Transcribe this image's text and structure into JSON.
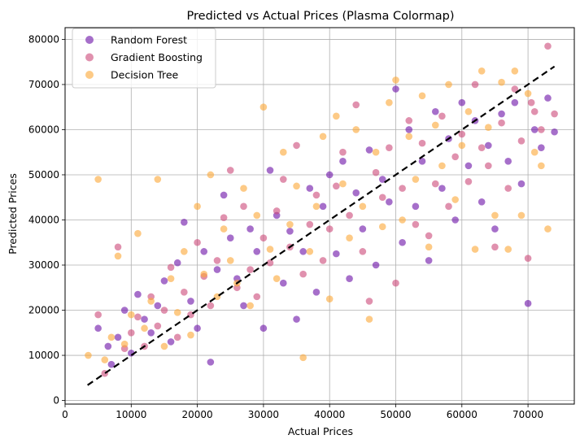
{
  "chart_data": {
    "type": "scatter",
    "title": "Predicted vs Actual Prices (Plasma Colormap)",
    "xlabel": "Actual Prices",
    "ylabel": "Predicted Prices",
    "xlim": [
      0,
      77000
    ],
    "ylim": [
      -800,
      82600
    ],
    "x_ticks": [
      0,
      10000,
      20000,
      30000,
      40000,
      50000,
      60000,
      70000
    ],
    "y_ticks": [
      0,
      10000,
      20000,
      30000,
      40000,
      50000,
      60000,
      70000,
      80000
    ],
    "x_tick_labels": [
      "0",
      "10000",
      "20000",
      "30000",
      "40000",
      "50000",
      "60000",
      "70000"
    ],
    "y_tick_labels": [
      "0",
      "10000",
      "20000",
      "30000",
      "40000",
      "50000",
      "60000",
      "70000",
      "80000"
    ],
    "grid": true,
    "legend_position": "upper-left",
    "point_alpha": 0.6,
    "reference_line": {
      "style": "dashed",
      "color": "#000000",
      "x": [
        3400,
        74000
      ],
      "y": [
        3400,
        74000
      ]
    },
    "series": [
      {
        "name": "Random Forest",
        "color": "#6a0fa7",
        "points": [
          [
            5000,
            16000
          ],
          [
            6500,
            12000
          ],
          [
            7000,
            8000
          ],
          [
            8000,
            14000
          ],
          [
            9000,
            20000
          ],
          [
            10000,
            10500
          ],
          [
            11000,
            23500
          ],
          [
            12000,
            18000
          ],
          [
            13000,
            15000
          ],
          [
            14000,
            21000
          ],
          [
            15000,
            26500
          ],
          [
            16000,
            13000
          ],
          [
            17000,
            30500
          ],
          [
            18000,
            39500
          ],
          [
            19000,
            22000
          ],
          [
            20000,
            16000
          ],
          [
            21000,
            33000
          ],
          [
            22000,
            8500
          ],
          [
            23000,
            29000
          ],
          [
            24000,
            45500
          ],
          [
            25000,
            36000
          ],
          [
            26000,
            27000
          ],
          [
            27000,
            21000
          ],
          [
            28000,
            38000
          ],
          [
            29000,
            33000
          ],
          [
            30000,
            16000
          ],
          [
            31000,
            51000
          ],
          [
            32000,
            41000
          ],
          [
            33000,
            26000
          ],
          [
            34000,
            37500
          ],
          [
            35000,
            18000
          ],
          [
            36000,
            33000
          ],
          [
            37000,
            47000
          ],
          [
            38000,
            24000
          ],
          [
            39000,
            43000
          ],
          [
            40000,
            50000
          ],
          [
            41000,
            32500
          ],
          [
            42000,
            53000
          ],
          [
            43000,
            27000
          ],
          [
            44000,
            46000
          ],
          [
            45000,
            38000
          ],
          [
            46000,
            55500
          ],
          [
            47000,
            30000
          ],
          [
            48000,
            49000
          ],
          [
            49000,
            44000
          ],
          [
            50000,
            69000
          ],
          [
            51000,
            35000
          ],
          [
            52000,
            60000
          ],
          [
            53000,
            43000
          ],
          [
            54000,
            53000
          ],
          [
            55000,
            31000
          ],
          [
            56000,
            64000
          ],
          [
            57000,
            47000
          ],
          [
            58000,
            58000
          ],
          [
            59000,
            40000
          ],
          [
            60000,
            66000
          ],
          [
            61000,
            52000
          ],
          [
            62000,
            62000
          ],
          [
            63000,
            44000
          ],
          [
            64000,
            56500
          ],
          [
            65000,
            38000
          ],
          [
            66000,
            63500
          ],
          [
            67000,
            53000
          ],
          [
            68000,
            66000
          ],
          [
            69000,
            48000
          ],
          [
            70000,
            21500
          ],
          [
            71000,
            60000
          ],
          [
            72000,
            56000
          ],
          [
            73000,
            67000
          ],
          [
            74000,
            59500
          ]
        ]
      },
      {
        "name": "Gradient Boosting",
        "color": "#cc4778",
        "points": [
          [
            5000,
            19000
          ],
          [
            6000,
            6000
          ],
          [
            8000,
            34000
          ],
          [
            9000,
            11500
          ],
          [
            10000,
            15000
          ],
          [
            11000,
            18500
          ],
          [
            12000,
            12000
          ],
          [
            13000,
            23000
          ],
          [
            14000,
            16500
          ],
          [
            15000,
            20000
          ],
          [
            16000,
            29500
          ],
          [
            17000,
            14000
          ],
          [
            18000,
            24000
          ],
          [
            19000,
            19000
          ],
          [
            20000,
            35000
          ],
          [
            21000,
            27500
          ],
          [
            22000,
            21000
          ],
          [
            23000,
            31000
          ],
          [
            24000,
            40500
          ],
          [
            25000,
            51000
          ],
          [
            26000,
            25000
          ],
          [
            27000,
            43000
          ],
          [
            28000,
            29000
          ],
          [
            29000,
            23000
          ],
          [
            30000,
            36000
          ],
          [
            31000,
            30500
          ],
          [
            32000,
            42000
          ],
          [
            33000,
            49000
          ],
          [
            34000,
            34000
          ],
          [
            35000,
            56500
          ],
          [
            36000,
            28000
          ],
          [
            37000,
            39000
          ],
          [
            38000,
            45500
          ],
          [
            39000,
            31000
          ],
          [
            40000,
            38000
          ],
          [
            41000,
            47500
          ],
          [
            42000,
            55000
          ],
          [
            43000,
            41000
          ],
          [
            44000,
            65500
          ],
          [
            45000,
            33000
          ],
          [
            46000,
            22000
          ],
          [
            47000,
            50500
          ],
          [
            48000,
            45000
          ],
          [
            49000,
            56000
          ],
          [
            50000,
            26000
          ],
          [
            51000,
            47000
          ],
          [
            52000,
            62000
          ],
          [
            53000,
            39000
          ],
          [
            54000,
            57000
          ],
          [
            55000,
            36500
          ],
          [
            56000,
            48000
          ],
          [
            57000,
            63000
          ],
          [
            58000,
            43000
          ],
          [
            59000,
            54000
          ],
          [
            60000,
            59000
          ],
          [
            61000,
            48500
          ],
          [
            62000,
            70000
          ],
          [
            63000,
            56000
          ],
          [
            64000,
            52000
          ],
          [
            65000,
            34000
          ],
          [
            66000,
            61500
          ],
          [
            67000,
            47000
          ],
          [
            68000,
            69000
          ],
          [
            69000,
            57500
          ],
          [
            70000,
            31500
          ],
          [
            71000,
            64000
          ],
          [
            72000,
            60000
          ],
          [
            73000,
            78500
          ],
          [
            74000,
            63500
          ],
          [
            70500,
            66000
          ]
        ]
      },
      {
        "name": "Decision Tree",
        "color": "#fca636",
        "points": [
          [
            3500,
            10000
          ],
          [
            5000,
            49000
          ],
          [
            6000,
            9000
          ],
          [
            7000,
            14000
          ],
          [
            8000,
            32000
          ],
          [
            9000,
            12500
          ],
          [
            10000,
            19000
          ],
          [
            11000,
            37000
          ],
          [
            12000,
            16000
          ],
          [
            13000,
            22000
          ],
          [
            14000,
            49000
          ],
          [
            15000,
            12000
          ],
          [
            16000,
            27000
          ],
          [
            17000,
            19500
          ],
          [
            18000,
            33000
          ],
          [
            19000,
            14500
          ],
          [
            20000,
            43000
          ],
          [
            21000,
            28000
          ],
          [
            22000,
            50000
          ],
          [
            23000,
            23000
          ],
          [
            24000,
            38000
          ],
          [
            25000,
            31000
          ],
          [
            26000,
            26000
          ],
          [
            27000,
            47000
          ],
          [
            28000,
            21000
          ],
          [
            29000,
            41000
          ],
          [
            30000,
            65000
          ],
          [
            31000,
            33500
          ],
          [
            32000,
            27000
          ],
          [
            33000,
            55000
          ],
          [
            34000,
            39000
          ],
          [
            35000,
            47500
          ],
          [
            36000,
            9500
          ],
          [
            37000,
            33000
          ],
          [
            38000,
            43000
          ],
          [
            39000,
            58500
          ],
          [
            40000,
            22500
          ],
          [
            41000,
            63000
          ],
          [
            42000,
            48000
          ],
          [
            43000,
            36000
          ],
          [
            44000,
            60000
          ],
          [
            45000,
            43000
          ],
          [
            46000,
            18000
          ],
          [
            47000,
            55000
          ],
          [
            48000,
            38500
          ],
          [
            49000,
            66000
          ],
          [
            50000,
            71000
          ],
          [
            51000,
            40000
          ],
          [
            52000,
            58500
          ],
          [
            53000,
            49000
          ],
          [
            54000,
            67500
          ],
          [
            55000,
            34000
          ],
          [
            56000,
            61000
          ],
          [
            57000,
            52000
          ],
          [
            58000,
            70000
          ],
          [
            59000,
            44500
          ],
          [
            60000,
            56500
          ],
          [
            61000,
            64000
          ],
          [
            62000,
            33500
          ],
          [
            63000,
            73000
          ],
          [
            64000,
            60500
          ],
          [
            65000,
            41000
          ],
          [
            66000,
            70500
          ],
          [
            67000,
            33500
          ],
          [
            68000,
            73000
          ],
          [
            69000,
            41000
          ],
          [
            70000,
            68000
          ],
          [
            71000,
            55000
          ],
          [
            72000,
            52000
          ],
          [
            73000,
            38000
          ]
        ]
      }
    ]
  }
}
